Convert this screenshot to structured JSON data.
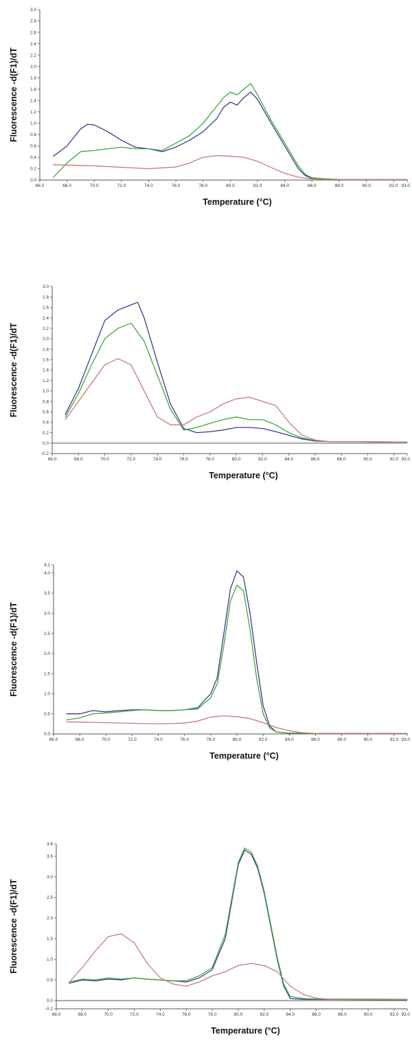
{
  "chart_data": [
    {
      "type": "line",
      "xlabel": "Temperature (°C)",
      "ylabel": "Fluorescence -d(F1)/dT",
      "xlim": [
        66.0,
        93.0
      ],
      "ylim": [
        0.0,
        3.0
      ],
      "xticks": [
        "66.0",
        "68.0",
        "70.0",
        "72.0",
        "74.0",
        "76.0",
        "78.0",
        "80.0",
        "82.0",
        "84.0",
        "86.0",
        "88.0",
        "90.0",
        "92.0",
        "93.0"
      ],
      "yticks": [
        "0.0",
        "0.2",
        "0.4",
        "0.6",
        "0.8",
        "1.0",
        "1.2",
        "1.4",
        "1.6",
        "1.8",
        "2.0",
        "2.2",
        "2.4",
        "2.6",
        "2.8",
        "3.0"
      ],
      "series": [
        {
          "color": "#3a3a8c",
          "x": [
            67,
            68,
            69,
            69.5,
            70,
            71,
            72,
            73,
            74,
            75,
            76,
            77,
            78,
            79,
            79.5,
            80,
            80.5,
            81,
            81.5,
            82,
            83,
            84,
            85,
            85.5,
            86,
            87,
            88,
            93
          ],
          "y": [
            0.42,
            0.6,
            0.9,
            0.98,
            0.97,
            0.85,
            0.7,
            0.58,
            0.55,
            0.5,
            0.58,
            0.7,
            0.85,
            1.08,
            1.28,
            1.37,
            1.32,
            1.45,
            1.55,
            1.42,
            1.0,
            0.6,
            0.2,
            0.08,
            0.03,
            0.02,
            0.01,
            0.01
          ]
        },
        {
          "color": "#3aa83a",
          "x": [
            67,
            68,
            69,
            70,
            71,
            72,
            73,
            74,
            75,
            76,
            77,
            78,
            79,
            79.5,
            80,
            80.5,
            81,
            81.5,
            82,
            83,
            84,
            85,
            85.5,
            86,
            87,
            88,
            93
          ],
          "y": [
            0.05,
            0.3,
            0.5,
            0.52,
            0.55,
            0.58,
            0.55,
            0.55,
            0.52,
            0.65,
            0.78,
            1.0,
            1.3,
            1.45,
            1.55,
            1.5,
            1.6,
            1.7,
            1.5,
            1.05,
            0.65,
            0.25,
            0.1,
            0.04,
            0.02,
            0.01,
            0.01
          ]
        },
        {
          "color": "#c87878",
          "x": [
            67,
            70,
            74,
            76,
            77,
            78,
            79,
            80,
            81,
            82,
            83,
            84,
            85,
            86,
            87,
            93
          ],
          "y": [
            0.27,
            0.25,
            0.2,
            0.23,
            0.3,
            0.4,
            0.43,
            0.42,
            0.4,
            0.33,
            0.22,
            0.12,
            0.05,
            0.02,
            0.01,
            0.01
          ]
        }
      ]
    },
    {
      "type": "line",
      "xlabel": "Temperature (°C)",
      "ylabel": "Fluorescence -d(F1)/dT",
      "xlim": [
        66.0,
        93.0
      ],
      "ylim": [
        -0.2,
        3.0
      ],
      "xticks": [
        "66.0",
        "68.0",
        "70.0",
        "72.0",
        "74.0",
        "76.0",
        "78.0",
        "80.0",
        "82.0",
        "84.0",
        "86.0",
        "88.0",
        "90.0",
        "92.0",
        "93.0"
      ],
      "yticks": [
        "-0.2",
        "0.0",
        "0.2",
        "0.4",
        "0.6",
        "0.8",
        "1.0",
        "1.2",
        "1.4",
        "1.6",
        "1.8",
        "2.0",
        "2.2",
        "2.4",
        "2.6",
        "2.8",
        "3.0"
      ],
      "series": [
        {
          "color": "#3a3a8c",
          "x": [
            67,
            68,
            69,
            70,
            71,
            72,
            72.5,
            73,
            74,
            75,
            76,
            77,
            78,
            79,
            80,
            81,
            82,
            83,
            84,
            85,
            86,
            87,
            93
          ],
          "y": [
            0.55,
            1.05,
            1.7,
            2.35,
            2.55,
            2.65,
            2.7,
            2.4,
            1.55,
            0.75,
            0.28,
            0.2,
            0.22,
            0.25,
            0.3,
            0.3,
            0.28,
            0.22,
            0.15,
            0.08,
            0.04,
            0.03,
            0.02
          ]
        },
        {
          "color": "#3aa83a",
          "x": [
            67,
            68,
            69,
            70,
            71,
            72,
            73,
            74,
            75,
            76,
            77,
            78,
            79,
            80,
            81,
            82,
            83,
            84,
            85,
            86,
            87,
            93
          ],
          "y": [
            0.5,
            0.95,
            1.5,
            2.0,
            2.2,
            2.3,
            1.95,
            1.3,
            0.65,
            0.25,
            0.3,
            0.38,
            0.45,
            0.5,
            0.45,
            0.45,
            0.35,
            0.2,
            0.1,
            0.05,
            0.03,
            0.02
          ]
        },
        {
          "color": "#c87878",
          "x": [
            67,
            68,
            69,
            70,
            71,
            72,
            73,
            74,
            75,
            76,
            77,
            78,
            79,
            80,
            81,
            82,
            83,
            84,
            85,
            86,
            87,
            93
          ],
          "y": [
            0.45,
            0.8,
            1.15,
            1.5,
            1.62,
            1.5,
            1.0,
            0.5,
            0.35,
            0.35,
            0.5,
            0.6,
            0.75,
            0.85,
            0.88,
            0.8,
            0.72,
            0.4,
            0.15,
            0.06,
            0.03,
            0.02
          ]
        }
      ]
    },
    {
      "type": "line",
      "xlabel": "Temperature (°C)",
      "ylabel": "Fluorescence -d(F1)/dT",
      "xlim": [
        66.0,
        93.0
      ],
      "ylim": [
        0.0,
        4.2
      ],
      "xticks": [
        "66.0",
        "68.0",
        "70.0",
        "72.0",
        "74.0",
        "76.0",
        "78.0",
        "80.0",
        "82.0",
        "84.0",
        "86.0",
        "88.0",
        "90.0",
        "92.0",
        "93.0"
      ],
      "yticks": [
        "0.0",
        "0.5",
        "1.0",
        "1.5",
        "2.0",
        "2.5",
        "3.0",
        "3.5",
        "4.0",
        "4.2"
      ],
      "ytick_values": [
        0.0,
        0.5,
        1.0,
        1.5,
        2.0,
        2.5,
        3.0,
        3.5,
        4.0,
        4.2
      ],
      "series": [
        {
          "color": "#3a3a8c",
          "x": [
            67,
            68,
            69,
            70,
            71,
            72,
            73,
            74,
            75,
            76,
            77,
            78,
            78.5,
            79,
            79.5,
            80,
            80.5,
            81,
            81.5,
            82,
            82.5,
            83,
            84,
            86,
            93
          ],
          "y": [
            0.5,
            0.5,
            0.58,
            0.55,
            0.58,
            0.6,
            0.6,
            0.58,
            0.58,
            0.6,
            0.65,
            1.0,
            1.4,
            2.5,
            3.6,
            4.05,
            3.9,
            3.0,
            1.8,
            0.7,
            0.2,
            0.05,
            0.02,
            0.01,
            0.01
          ]
        },
        {
          "color": "#3aa83a",
          "x": [
            67,
            68,
            69,
            70,
            71,
            72,
            73,
            74,
            75,
            76,
            77,
            78,
            78.5,
            79,
            79.5,
            80,
            80.5,
            81,
            81.5,
            82,
            82.5,
            83,
            84,
            86,
            93
          ],
          "y": [
            0.35,
            0.4,
            0.5,
            0.52,
            0.55,
            0.58,
            0.6,
            0.58,
            0.58,
            0.6,
            0.62,
            0.9,
            1.25,
            2.2,
            3.3,
            3.7,
            3.55,
            2.6,
            1.4,
            0.5,
            0.15,
            0.05,
            0.02,
            0.01,
            0.01
          ]
        },
        {
          "color": "#c87878",
          "x": [
            67,
            70,
            74,
            76,
            77,
            78,
            79,
            80,
            81,
            82,
            83,
            84,
            85,
            86,
            93
          ],
          "y": [
            0.3,
            0.28,
            0.25,
            0.27,
            0.32,
            0.42,
            0.45,
            0.43,
            0.38,
            0.28,
            0.16,
            0.08,
            0.03,
            0.01,
            0.01
          ]
        }
      ]
    },
    {
      "type": "line",
      "xlabel": "Temperature (°C)",
      "ylabel": "Fluorescence -d(F1)/dT",
      "xlim": [
        66.0,
        93.0
      ],
      "ylim": [
        -0.2,
        3.8
      ],
      "xticks": [
        "66.0",
        "68.0",
        "70.0",
        "72.0",
        "74.0",
        "76.0",
        "78.0",
        "80.0",
        "82.0",
        "84.0",
        "86.0",
        "88.0",
        "90.0",
        "92.0",
        "93.0"
      ],
      "yticks": [
        "-0.2",
        "0.0",
        "0.5",
        "1.0",
        "1.5",
        "2.0",
        "2.5",
        "3.0",
        "3.5",
        "3.8"
      ],
      "ytick_values": [
        -0.2,
        0.0,
        0.5,
        1.0,
        1.5,
        2.0,
        2.5,
        3.0,
        3.5,
        3.8
      ],
      "series": [
        {
          "color": "#3a3a8c",
          "x": [
            67,
            68,
            69,
            70,
            71,
            72,
            73,
            74,
            75,
            76,
            77,
            78,
            79,
            80,
            80.5,
            81,
            81.5,
            82,
            83,
            83.5,
            84,
            85,
            86,
            93
          ],
          "y": [
            0.42,
            0.5,
            0.48,
            0.52,
            0.5,
            0.55,
            0.52,
            0.5,
            0.48,
            0.45,
            0.55,
            0.75,
            1.5,
            3.3,
            3.65,
            3.55,
            3.2,
            2.6,
            1.0,
            0.35,
            0.05,
            0.03,
            0.03,
            0.02
          ]
        },
        {
          "color": "#3aa83a",
          "x": [
            67,
            68,
            69,
            70,
            71,
            72,
            73,
            74,
            75,
            76,
            77,
            78,
            79,
            80,
            80.5,
            81,
            81.5,
            82,
            83,
            83.5,
            84,
            85,
            86,
            93
          ],
          "y": [
            0.45,
            0.52,
            0.5,
            0.55,
            0.52,
            0.55,
            0.52,
            0.5,
            0.48,
            0.48,
            0.6,
            0.8,
            1.6,
            3.35,
            3.7,
            3.6,
            3.25,
            2.65,
            1.05,
            0.4,
            0.1,
            0.05,
            0.04,
            0.03
          ]
        },
        {
          "color": "#c87878",
          "x": [
            67,
            68,
            69,
            70,
            71,
            72,
            73,
            74,
            75,
            76,
            77,
            78,
            79,
            80,
            81,
            82,
            83,
            84,
            85,
            86,
            87,
            93
          ],
          "y": [
            0.45,
            0.8,
            1.2,
            1.55,
            1.62,
            1.4,
            0.9,
            0.55,
            0.4,
            0.35,
            0.45,
            0.6,
            0.7,
            0.85,
            0.9,
            0.85,
            0.7,
            0.35,
            0.15,
            0.06,
            0.03,
            0.02
          ]
        }
      ]
    }
  ]
}
